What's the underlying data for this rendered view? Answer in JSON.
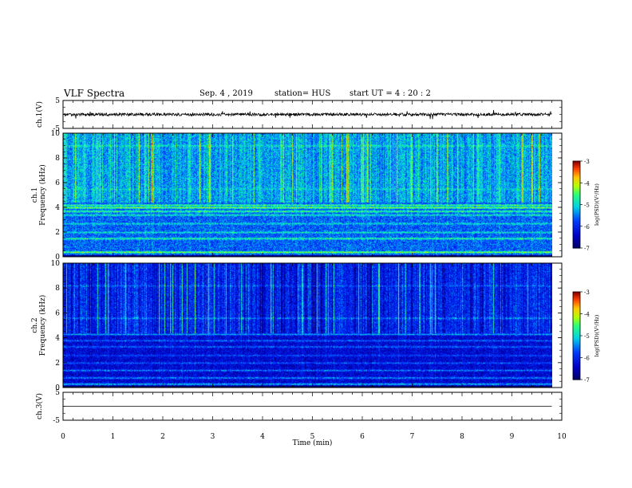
{
  "header": {
    "title": "VLF Spectra",
    "date": "Sep. 4 , 2019",
    "station": "station= HUS",
    "start": "start UT = 4 : 20 : 2"
  },
  "chart_data": [
    {
      "type": "line",
      "panel": "ch1-waveform",
      "ylabel": "ch.1(V)",
      "ylim": [
        -5,
        5
      ],
      "yticks": [
        "5",
        "-5"
      ],
      "xlim": [
        0,
        10
      ],
      "series": [
        {
          "level": 0.0,
          "noise_amplitude": 0.5,
          "x_end": 9.8
        }
      ],
      "color": "#000000"
    },
    {
      "type": "heatmap",
      "panel": "ch1-spectrogram",
      "ylabel": "ch.1\nFrequency (kHz)",
      "ylim": [
        0,
        10
      ],
      "yticks": [
        "0",
        "2",
        "4",
        "6",
        "8",
        "10"
      ],
      "xlim": [
        0,
        9.8
      ],
      "background_level": -5.6,
      "upper_band_level": -5.3,
      "bright_bands_khz": [
        {
          "f": 0.4,
          "level": -4.2
        },
        {
          "f": 1.5,
          "level": -4.6
        },
        {
          "f": 2.0,
          "level": -4.9
        },
        {
          "f": 2.7,
          "level": -5.0
        },
        {
          "f": 3.4,
          "level": -4.8
        },
        {
          "f": 3.7,
          "level": -4.5
        },
        {
          "f": 4.0,
          "level": -4.3
        },
        {
          "f": 4.2,
          "level": -4.5
        },
        {
          "f": 5.5,
          "level": -5.0
        },
        {
          "f": 9.0,
          "level": -4.9
        }
      ]
    },
    {
      "type": "heatmap",
      "panel": "ch2-spectrogram",
      "ylabel": "ch.2\nFrequency (kHz)",
      "ylim": [
        0,
        10
      ],
      "yticks": [
        "0",
        "2",
        "4",
        "6",
        "8",
        "10"
      ],
      "xlim": [
        0,
        9.8
      ],
      "background_level": -6.3,
      "upper_band_level": -6.0,
      "bright_bands_khz": [
        {
          "f": 0.3,
          "level": -5.0
        },
        {
          "f": 0.8,
          "level": -5.3
        },
        {
          "f": 1.4,
          "level": -5.4
        },
        {
          "f": 2.0,
          "level": -5.6
        },
        {
          "f": 2.6,
          "level": -5.7
        },
        {
          "f": 3.3,
          "level": -5.5
        },
        {
          "f": 3.8,
          "level": -5.5
        },
        {
          "f": 4.3,
          "level": -5.2
        },
        {
          "f": 5.6,
          "level": -5.4
        },
        {
          "f": 8.2,
          "level": -5.6
        }
      ]
    },
    {
      "type": "line",
      "panel": "ch3-waveform",
      "ylabel": "ch.3(V)",
      "ylim": [
        -5,
        5
      ],
      "yticks": [
        "5",
        "-5"
      ],
      "xlim": [
        0,
        10
      ],
      "series": [
        {
          "level": 0.0,
          "noise_amplitude": 0.0,
          "x_end": 9.8
        }
      ],
      "color": "#000000"
    }
  ],
  "xaxis": {
    "label": "Time (min)",
    "ticks": [
      "0",
      "1",
      "2",
      "3",
      "4",
      "5",
      "6",
      "7",
      "8",
      "9",
      "10"
    ],
    "range": [
      0,
      10
    ]
  },
  "colorbar": {
    "label": "log(PSD)(V²/Hz)",
    "ticks": [
      "-3",
      "-4",
      "-5",
      "-6",
      "-7"
    ],
    "range": [
      -7,
      -3
    ]
  }
}
